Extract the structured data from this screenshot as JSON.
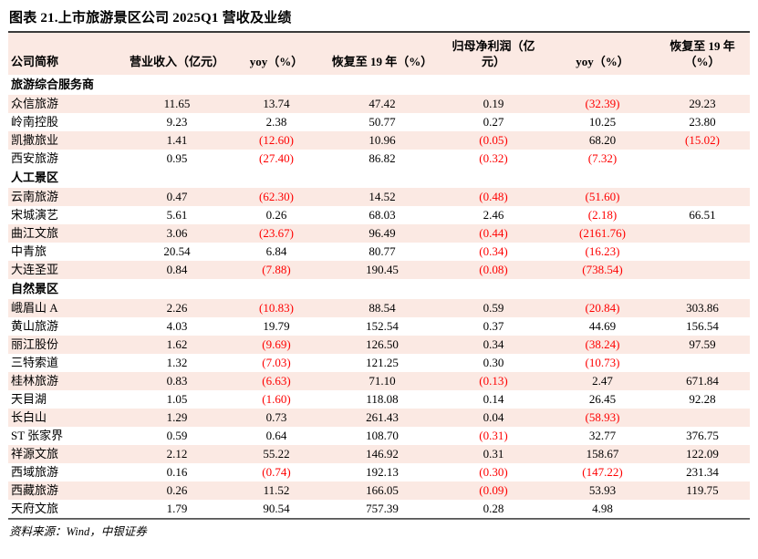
{
  "title": "图表 21.上市旅游景区公司 2025Q1 营收及业绩",
  "source": "资料来源：Wind，中银证券",
  "colors": {
    "row_shade_pink": "#fbe9e3",
    "negative_red": "#fe0000",
    "text_black": "#000000",
    "rule_dark": "#3a3a3a",
    "rule_gray": "#7a7a7a"
  },
  "table": {
    "columns": [
      "公司简称",
      "营业收入（亿元）",
      "yoy（%）",
      "恢复至 19 年（%）",
      "归母净利润（亿\n元）",
      "yoy（%）",
      "恢复至 19 年\n（%）"
    ],
    "negative_format_note": "values in parentheses are negative and rendered in red",
    "sections": [
      {
        "name": "旅游综合服务商",
        "rows": [
          {
            "name": "众信旅游",
            "values": [
              "11.65",
              "13.74",
              "47.42",
              "0.19",
              "(32.39)",
              "29.23"
            ]
          },
          {
            "name": "岭南控股",
            "values": [
              "9.23",
              "2.38",
              "50.77",
              "0.27",
              "10.25",
              "23.80"
            ]
          },
          {
            "name": "凯撒旅业",
            "values": [
              "1.41",
              "(12.60)",
              "10.96",
              "(0.05)",
              "68.20",
              "(15.02)"
            ]
          },
          {
            "name": "西安旅游",
            "values": [
              "0.95",
              "(27.40)",
              "86.82",
              "(0.32)",
              "(7.32)",
              ""
            ]
          }
        ]
      },
      {
        "name": "人工景区",
        "rows": [
          {
            "name": "云南旅游",
            "values": [
              "0.47",
              "(62.30)",
              "14.52",
              "(0.48)",
              "(51.60)",
              ""
            ]
          },
          {
            "name": "宋城演艺",
            "values": [
              "5.61",
              "0.26",
              "68.03",
              "2.46",
              "(2.18)",
              "66.51"
            ]
          },
          {
            "name": "曲江文旅",
            "values": [
              "3.06",
              "(23.67)",
              "96.49",
              "(0.44)",
              "(2161.76)",
              ""
            ]
          },
          {
            "name": "中青旅",
            "values": [
              "20.54",
              "6.84",
              "80.77",
              "(0.34)",
              "(16.23)",
              ""
            ]
          },
          {
            "name": "大连圣亚",
            "values": [
              "0.84",
              "(7.88)",
              "190.45",
              "(0.08)",
              "(738.54)",
              ""
            ]
          }
        ]
      },
      {
        "name": "自然景区",
        "rows": [
          {
            "name": "峨眉山 A",
            "values": [
              "2.26",
              "(10.83)",
              "88.54",
              "0.59",
              "(20.84)",
              "303.86"
            ]
          },
          {
            "name": "黄山旅游",
            "values": [
              "4.03",
              "19.79",
              "152.54",
              "0.37",
              "44.69",
              "156.54"
            ]
          },
          {
            "name": "丽江股份",
            "values": [
              "1.62",
              "(9.69)",
              "126.50",
              "0.34",
              "(38.24)",
              "97.59"
            ]
          },
          {
            "name": "三特索道",
            "values": [
              "1.32",
              "(7.03)",
              "121.25",
              "0.30",
              "(10.73)",
              ""
            ]
          },
          {
            "name": "桂林旅游",
            "values": [
              "0.83",
              "(6.63)",
              "71.10",
              "(0.13)",
              "2.47",
              "671.84"
            ]
          },
          {
            "name": "天目湖",
            "values": [
              "1.05",
              "(1.60)",
              "118.08",
              "0.14",
              "26.45",
              "92.28"
            ]
          },
          {
            "name": "长白山",
            "values": [
              "1.29",
              "0.73",
              "261.43",
              "0.04",
              "(58.93)",
              ""
            ]
          },
          {
            "name": "ST 张家界",
            "values": [
              "0.59",
              "0.64",
              "108.70",
              "(0.31)",
              "32.77",
              "376.75"
            ]
          },
          {
            "name": "祥源文旅",
            "values": [
              "2.12",
              "55.22",
              "146.92",
              "0.31",
              "158.67",
              "122.09"
            ]
          },
          {
            "name": "西域旅游",
            "values": [
              "0.16",
              "(0.74)",
              "192.13",
              "(0.30)",
              "(147.22)",
              "231.34"
            ]
          },
          {
            "name": "西藏旅游",
            "values": [
              "0.26",
              "11.52",
              "166.05",
              "(0.09)",
              "53.93",
              "119.75"
            ]
          },
          {
            "name": "天府文旅",
            "values": [
              "1.79",
              "90.54",
              "757.39",
              "0.28",
              "4.98",
              ""
            ]
          }
        ]
      }
    ]
  }
}
